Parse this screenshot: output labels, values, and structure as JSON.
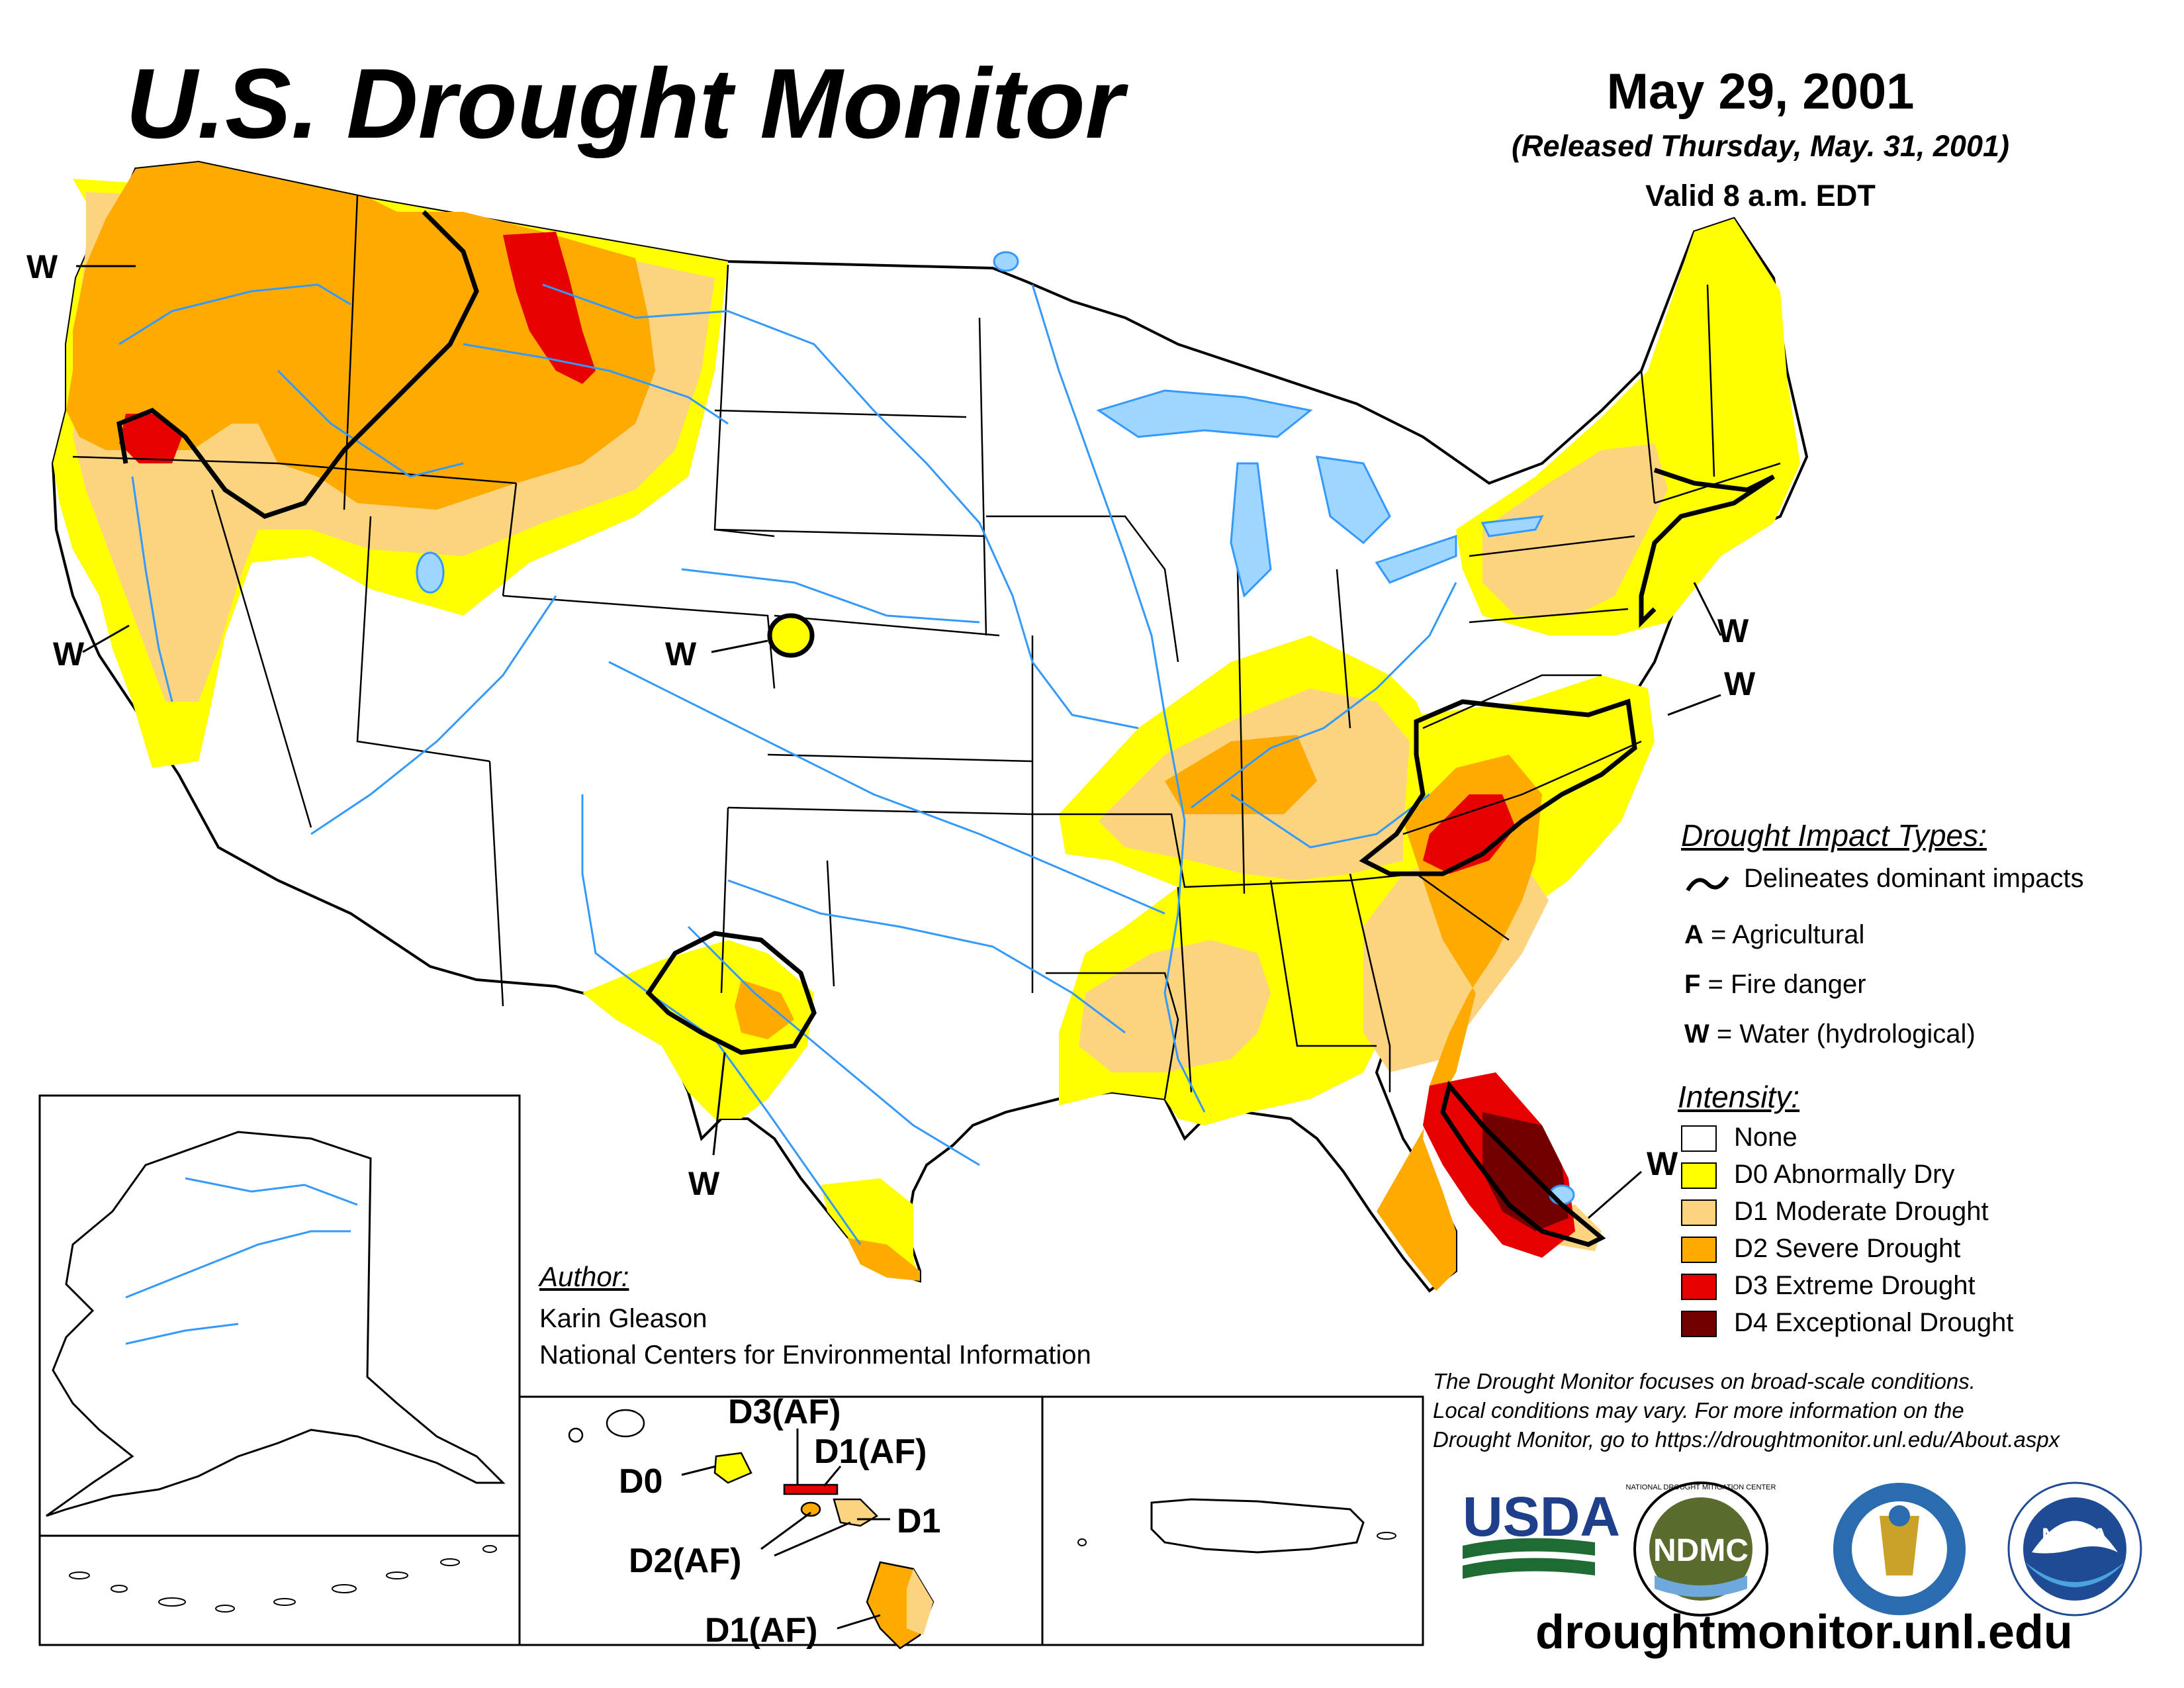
{
  "header": {
    "title": "U.S. Drought Monitor",
    "date": "May 29, 2001",
    "released": "(Released Thursday, May. 31, 2001)",
    "valid": "Valid 8 a.m. EDT"
  },
  "impact_legend": {
    "heading": "Drought Impact Types:",
    "delineates": "Delineates dominant impacts",
    "items": [
      {
        "key": "A",
        "label": " = Agricultural"
      },
      {
        "key": "F",
        "label": " = Fire danger"
      },
      {
        "key": "W",
        "label": " = Water (hydrological)"
      }
    ]
  },
  "intensity_legend": {
    "heading": "Intensity:",
    "items": [
      {
        "label": "None",
        "color": "#ffffff"
      },
      {
        "label": "D0 Abnormally Dry",
        "color": "#ffff00"
      },
      {
        "label": "D1 Moderate Drought",
        "color": "#fcd37f"
      },
      {
        "label": "D2 Severe Drought",
        "color": "#ffaa00"
      },
      {
        "label": "D3 Extreme Drought",
        "color": "#e60000"
      },
      {
        "label": "D4 Exceptional Drought",
        "color": "#730000"
      }
    ]
  },
  "author": {
    "heading": "Author:",
    "name": "Karin Gleason",
    "org": "National Centers for Environmental Information"
  },
  "map_labels": {
    "w_pacific_nw": "W",
    "w_california": "W",
    "w_colorado": "W",
    "w_texas": "W",
    "w_northeast": "W",
    "w_southeast": "W",
    "w_florida": "W"
  },
  "hawaii_labels": {
    "d3": "D3(AF)",
    "d1_upper": "D1(AF)",
    "d0": "D0",
    "d1": "D1",
    "d2": "D2(AF)",
    "d1_lower": "D1(AF)"
  },
  "disclaimer": {
    "line1": "The Drought Monitor focuses on broad-scale conditions.",
    "line2": "Local conditions may vary. For more information on the",
    "line3": "Drought Monitor, go to https://droughtmonitor.unl.edu/About.aspx"
  },
  "logos": {
    "usda": "USDA",
    "ndmc": "NDMC",
    "ndmc_ring": "NATIONAL DROUGHT MITIGATION CENTER",
    "noaa": "NOAA"
  },
  "website": "droughtmonitor.unl.edu",
  "colors": {
    "d0": "#ffff00",
    "d1": "#fcd37f",
    "d2": "#ffaa00",
    "d3": "#e60000",
    "d4": "#730000",
    "water": "#3399ff"
  }
}
